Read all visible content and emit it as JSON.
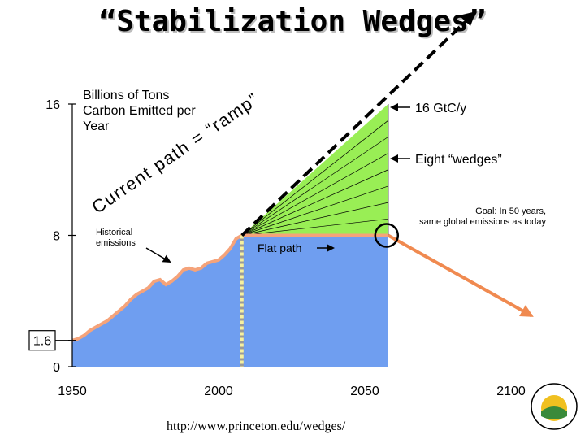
{
  "slide": {
    "title": "“Stabilization Wedges”",
    "source": "http://www.princeton.edu/wedges/"
  },
  "chart_data": {
    "type": "area",
    "title": "“Stabilization Wedges”",
    "ylabel": "Billions of Tons Carbon Emitted per Year",
    "xlabel": "",
    "xlim": [
      1950,
      2100
    ],
    "ylim": [
      0,
      16
    ],
    "x_ticks": [
      "1950",
      "2000",
      "2050",
      "2100"
    ],
    "y_ticks": [
      "0",
      "1.6",
      "8",
      "16"
    ],
    "colors": {
      "historical_fill": "#6f9ef0",
      "wedge_fill": "#99ee55",
      "flat_path_fill": "#6f9ef0",
      "emissions_line": "#f5a37a",
      "decline_arrow": "#f08a50",
      "marker_circle": "#000000",
      "year_2008_marker": "#f5f0a0"
    },
    "series": [
      {
        "name": "Historical emissions",
        "x": [
          1950,
          1952,
          1954,
          1956,
          1958,
          1960,
          1962,
          1964,
          1966,
          1968,
          1970,
          1972,
          1974,
          1976,
          1978,
          1980,
          1982,
          1984,
          1986,
          1988,
          1990,
          1992,
          1994,
          1996,
          1998,
          2000,
          2002,
          2004,
          2006,
          2008
        ],
        "values": [
          1.6,
          1.7,
          1.9,
          2.2,
          2.4,
          2.6,
          2.8,
          3.1,
          3.4,
          3.7,
          4.1,
          4.4,
          4.6,
          4.8,
          5.2,
          5.3,
          5.0,
          5.2,
          5.5,
          5.9,
          6.0,
          5.9,
          6.0,
          6.3,
          6.4,
          6.5,
          6.8,
          7.2,
          7.8,
          8.0
        ]
      },
      {
        "name": "Flat path",
        "x": [
          2008,
          2058
        ],
        "values": [
          8.0,
          8.0
        ]
      },
      {
        "name": "Current path = “ramp”",
        "x": [
          2008,
          2058
        ],
        "values": [
          8.0,
          16.0
        ]
      },
      {
        "name": "Decline after 2058",
        "x": [
          2058,
          2107
        ],
        "values": [
          8.0,
          3.1
        ]
      }
    ],
    "annotations": {
      "y_axis_label": "Billions of Tons Carbon Emitted per Year",
      "current_path": "Current path = “ramp”",
      "target_16": "16 GtC/y",
      "eight_wedges": "Eight “wedges”",
      "goal": "Goal: In 50 years, same global emissions as today",
      "historical": "Historical emissions",
      "flat_path": "Flat path",
      "wedge_count": 8
    }
  }
}
